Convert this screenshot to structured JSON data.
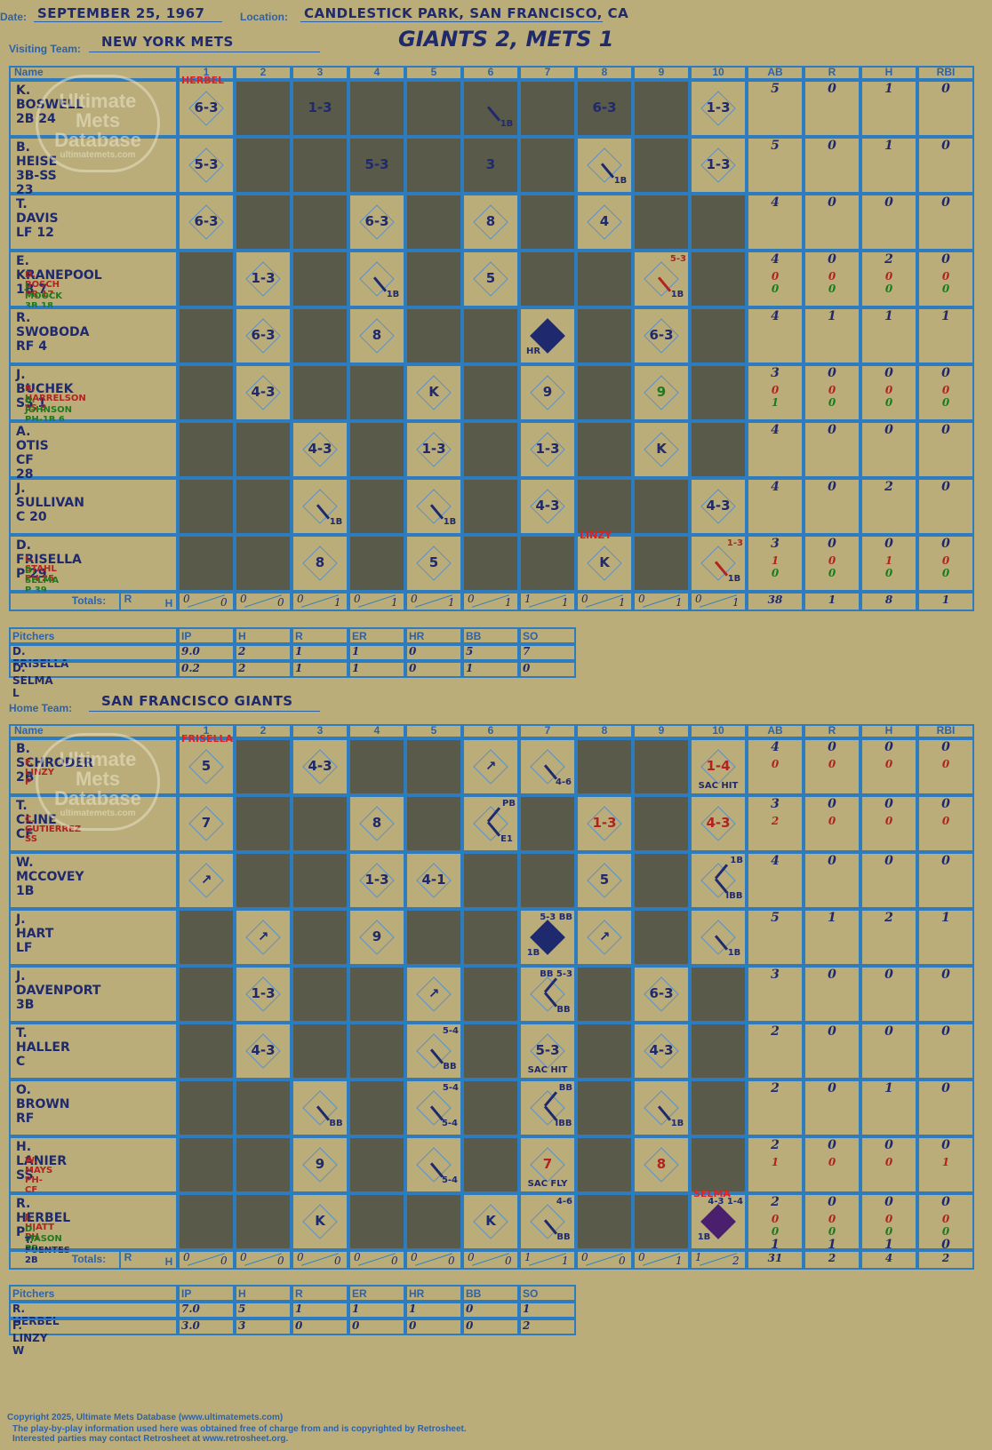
{
  "header": {
    "date_label": "Date:",
    "date": "SEPTEMBER 25, 1967",
    "location_label": "Location:",
    "location": "CANDLESTICK PARK, SAN FRANCISCO, CA",
    "visiting_label": "Visiting Team:",
    "visiting_team": "NEW YORK METS",
    "title": "GIANTS 2, METS 1",
    "home_label": "Home Team:",
    "home_team": "SAN FRANCISCO GIANTS"
  },
  "columns": {
    "name": "Name",
    "innings": [
      "1",
      "2",
      "3",
      "4",
      "5",
      "6",
      "7",
      "8",
      "9",
      "10"
    ],
    "stats": [
      "AB",
      "R",
      "H",
      "RBI"
    ],
    "totals_label": "Totals:",
    "totals_r": "R",
    "totals_h": "H"
  },
  "watermark": {
    "line1": "Ultimate",
    "line2": "Mets",
    "line3": "Database",
    "url": "ultimatemets.com"
  },
  "visitors": {
    "rows": [
      {
        "name": "K. BOSWELL 2B",
        "num": "24",
        "subs": [],
        "stats": [
          [
            "5"
          ],
          [
            "0"
          ],
          [
            "1"
          ],
          [
            "0"
          ]
        ]
      },
      {
        "name": "B. HEISE 3B-SS",
        "num": "23",
        "subs": [],
        "stats": [
          [
            "5"
          ],
          [
            "0"
          ],
          [
            "1"
          ],
          [
            "0"
          ]
        ]
      },
      {
        "name": "T. DAVIS LF",
        "num": "12",
        "subs": [],
        "stats": [
          [
            "4"
          ],
          [
            "0"
          ],
          [
            "0"
          ],
          [
            "0"
          ]
        ]
      },
      {
        "name": "E. KRANEPOOL 1B",
        "num": "7",
        "subs": [
          {
            "text": "D. BOSCH PR  17",
            "c": "red"
          },
          {
            "text": "J. MOOCK 3B  18",
            "c": "green"
          }
        ],
        "stats": [
          [
            "4",
            "0",
            "0"
          ],
          [
            "0",
            "0",
            "0"
          ],
          [
            "2",
            "0",
            "0"
          ],
          [
            "0",
            "0",
            "0"
          ]
        ]
      },
      {
        "name": "R. SWOBODA RF",
        "num": "4",
        "subs": [],
        "stats": [
          [
            "4"
          ],
          [
            "1"
          ],
          [
            "1"
          ],
          [
            "1"
          ]
        ]
      },
      {
        "name": "J. BUCHEK SS",
        "num": "1",
        "subs": [
          {
            "text": "B. HARRELSON SS  3",
            "c": "red"
          },
          {
            "text": "B. JOHNSON PH-1B  6",
            "c": "green"
          }
        ],
        "stats": [
          [
            "3",
            "0",
            "1"
          ],
          [
            "0",
            "0",
            "0"
          ],
          [
            "0",
            "0",
            "0"
          ],
          [
            "0",
            "0",
            "0"
          ]
        ]
      },
      {
        "name": "A. OTIS CF",
        "num": "28",
        "subs": [],
        "stats": [
          [
            "4"
          ],
          [
            "0"
          ],
          [
            "0"
          ],
          [
            "0"
          ]
        ]
      },
      {
        "name": "J. SULLIVAN C",
        "num": "20",
        "subs": [],
        "stats": [
          [
            "4"
          ],
          [
            "0"
          ],
          [
            "2"
          ],
          [
            "0"
          ]
        ]
      },
      {
        "name": "D. FRISELLA P",
        "num": "29",
        "subs": [
          {
            "text": "L. STAHL PH  25",
            "c": "red"
          },
          {
            "text": "D. SELMA P  39",
            "c": "green"
          }
        ],
        "stats": [
          [
            "3",
            "1",
            "0"
          ],
          [
            "0",
            "0",
            "0"
          ],
          [
            "0",
            "1",
            "0"
          ],
          [
            "0",
            "0",
            "0"
          ]
        ]
      }
    ],
    "plays": [
      {
        "r": 0,
        "c": 0,
        "t": "6-3"
      },
      {
        "r": 0,
        "c": 2,
        "t": "1-3"
      },
      {
        "r": 0,
        "c": 5,
        "t": "1B",
        "kind": "single"
      },
      {
        "r": 0,
        "c": 7,
        "t": "6-3"
      },
      {
        "r": 0,
        "c": 9,
        "t": "1-3"
      },
      {
        "r": 1,
        "c": 0,
        "t": "5-3"
      },
      {
        "r": 1,
        "c": 3,
        "t": "5-3"
      },
      {
        "r": 1,
        "c": 5,
        "t": "3"
      },
      {
        "r": 1,
        "c": 7,
        "t": "1B",
        "kind": "single"
      },
      {
        "r": 1,
        "c": 9,
        "t": "1-3"
      },
      {
        "r": 2,
        "c": 0,
        "t": "6-3"
      },
      {
        "r": 2,
        "c": 3,
        "t": "6-3"
      },
      {
        "r": 2,
        "c": 5,
        "t": "8"
      },
      {
        "r": 2,
        "c": 7,
        "t": "4"
      },
      {
        "r": 3,
        "c": 1,
        "t": "1-3"
      },
      {
        "r": 3,
        "c": 3,
        "t": "1B",
        "kind": "single"
      },
      {
        "r": 3,
        "c": 5,
        "t": "5"
      },
      {
        "r": 3,
        "c": 8,
        "t": "1B",
        "kind": "single",
        "extra": "5-3"
      },
      {
        "r": 4,
        "c": 1,
        "t": "6-3"
      },
      {
        "r": 4,
        "c": 3,
        "t": "8"
      },
      {
        "r": 4,
        "c": 6,
        "t": "HR",
        "kind": "hr"
      },
      {
        "r": 4,
        "c": 8,
        "t": "6-3"
      },
      {
        "r": 5,
        "c": 1,
        "t": "4-3"
      },
      {
        "r": 5,
        "c": 4,
        "t": "K"
      },
      {
        "r": 5,
        "c": 6,
        "t": "9"
      },
      {
        "r": 5,
        "c": 8,
        "t": "9",
        "green": true
      },
      {
        "r": 6,
        "c": 2,
        "t": "4-3"
      },
      {
        "r": 6,
        "c": 4,
        "t": "1-3"
      },
      {
        "r": 6,
        "c": 6,
        "t": "1-3"
      },
      {
        "r": 6,
        "c": 8,
        "t": "K"
      },
      {
        "r": 7,
        "c": 2,
        "t": "1B",
        "kind": "single"
      },
      {
        "r": 7,
        "c": 4,
        "t": "1B",
        "kind": "single"
      },
      {
        "r": 7,
        "c": 6,
        "t": "4-3"
      },
      {
        "r": 7,
        "c": 9,
        "t": "4-3"
      },
      {
        "r": 8,
        "c": 2,
        "t": "8"
      },
      {
        "r": 8,
        "c": 4,
        "t": "5"
      },
      {
        "r": 8,
        "c": 7,
        "t": "K"
      },
      {
        "r": 8,
        "c": 9,
        "t": "1B",
        "kind": "single",
        "extra": "1-3"
      }
    ],
    "dark": [
      [
        1,
        2,
        3,
        4,
        5,
        6,
        7,
        8
      ],
      [
        1,
        2,
        3,
        4,
        5,
        6,
        8
      ],
      [
        1,
        2,
        4,
        6,
        8,
        9
      ],
      [
        0,
        2,
        4,
        6,
        7,
        9
      ],
      [
        0,
        2,
        4,
        5,
        7,
        9
      ],
      [
        0,
        2,
        3,
        5,
        7,
        9
      ],
      [
        0,
        1,
        3,
        5,
        7,
        9
      ],
      [
        0,
        1,
        3,
        5,
        7,
        8
      ],
      [
        0,
        1,
        3,
        5,
        6,
        8
      ]
    ],
    "notes": [
      {
        "r": 0,
        "c": 0,
        "t": "HERBEL"
      },
      {
        "r": 8,
        "c": 7,
        "t": "LINZY"
      }
    ],
    "totals": [
      [
        "0",
        "0"
      ],
      [
        "0",
        "0"
      ],
      [
        "0",
        "1"
      ],
      [
        "0",
        "1"
      ],
      [
        "0",
        "1"
      ],
      [
        "0",
        "1"
      ],
      [
        "1",
        "1"
      ],
      [
        "0",
        "1"
      ],
      [
        "0",
        "1"
      ],
      [
        "0",
        "1"
      ]
    ],
    "stat_totals": [
      "38",
      "1",
      "8",
      "1"
    ]
  },
  "visitor_pitchers": {
    "header": [
      "Pitchers",
      "IP",
      "H",
      "R",
      "ER",
      "HR",
      "BB",
      "SO"
    ],
    "rows": [
      [
        "D. FRISELLA",
        "9.0",
        "2",
        "1",
        "1",
        "0",
        "5",
        "7"
      ],
      [
        "D. SELMA  L",
        "0.2",
        "2",
        "1",
        "1",
        "0",
        "1",
        "0"
      ]
    ]
  },
  "home": {
    "rows": [
      {
        "name": "B. SCHRODER 2B",
        "num": "",
        "subs": [
          {
            "text": "F. LINZY P",
            "c": "red"
          }
        ],
        "stats": [
          [
            "4",
            "0"
          ],
          [
            "0",
            "0"
          ],
          [
            "0",
            "0"
          ],
          [
            "0",
            "0"
          ]
        ]
      },
      {
        "name": "T. CLINE CF",
        "num": "",
        "subs": [
          {
            "text": "C. GUTIERREZ SS",
            "c": "red"
          }
        ],
        "stats": [
          [
            "3",
            "2"
          ],
          [
            "0",
            "0"
          ],
          [
            "0",
            "0"
          ],
          [
            "0",
            "0"
          ]
        ]
      },
      {
        "name": "W. MCCOVEY 1B",
        "num": "",
        "subs": [],
        "stats": [
          [
            "4"
          ],
          [
            "0"
          ],
          [
            "0"
          ],
          [
            "0"
          ]
        ]
      },
      {
        "name": "J. HART LF",
        "num": "",
        "subs": [],
        "stats": [
          [
            "5"
          ],
          [
            "1"
          ],
          [
            "2"
          ],
          [
            "1"
          ]
        ]
      },
      {
        "name": "J. DAVENPORT 3B",
        "num": "",
        "subs": [],
        "stats": [
          [
            "3"
          ],
          [
            "0"
          ],
          [
            "0"
          ],
          [
            "0"
          ]
        ]
      },
      {
        "name": "T. HALLER C",
        "num": "",
        "subs": [],
        "stats": [
          [
            "2"
          ],
          [
            "0"
          ],
          [
            "0"
          ],
          [
            "0"
          ]
        ]
      },
      {
        "name": "O. BROWN RF",
        "num": "",
        "subs": [],
        "stats": [
          [
            "2"
          ],
          [
            "0"
          ],
          [
            "1"
          ],
          [
            "0"
          ]
        ]
      },
      {
        "name": "H. LANIER SS",
        "num": "",
        "subs": [
          {
            "text": "W. MAYS PH-CF",
            "c": "red"
          }
        ],
        "stats": [
          [
            "2",
            "1"
          ],
          [
            "0",
            "0"
          ],
          [
            "0",
            "0"
          ],
          [
            "0",
            "1"
          ]
        ]
      },
      {
        "name": "R. HERBEL P",
        "num": "",
        "subs": [
          {
            "text": "J. HIATT PH",
            "c": "red"
          },
          {
            "text": "D. MASON PR",
            "c": "green"
          },
          {
            "text": "T. FUENTES 2B",
            "c": "blue"
          }
        ],
        "stats": [
          [
            "2",
            "0",
            "0",
            "1"
          ],
          [
            "0",
            "0",
            "0",
            "1"
          ],
          [
            "0",
            "0",
            "0",
            "1"
          ],
          [
            "0",
            "0",
            "0",
            "0"
          ]
        ]
      }
    ],
    "plays": [
      {
        "r": 0,
        "c": 0,
        "t": "5"
      },
      {
        "r": 0,
        "c": 2,
        "t": "4-3"
      },
      {
        "r": 0,
        "c": 5,
        "t": "↗"
      },
      {
        "r": 0,
        "c": 6,
        "t": "4-6",
        "kind": "single"
      },
      {
        "r": 0,
        "c": 9,
        "t": "1-4",
        "red": true,
        "extra": "SAC HIT"
      },
      {
        "r": 1,
        "c": 0,
        "t": "7"
      },
      {
        "r": 1,
        "c": 3,
        "t": "8"
      },
      {
        "r": 1,
        "c": 5,
        "t": "E1",
        "kind": "double",
        "extra": "PB"
      },
      {
        "r": 1,
        "c": 7,
        "t": "1-3",
        "red": true
      },
      {
        "r": 1,
        "c": 9,
        "t": "4-3",
        "red": true
      },
      {
        "r": 2,
        "c": 0,
        "t": "↗"
      },
      {
        "r": 2,
        "c": 3,
        "t": "1-3"
      },
      {
        "r": 2,
        "c": 4,
        "t": "4-1"
      },
      {
        "r": 2,
        "c": 7,
        "t": "5"
      },
      {
        "r": 2,
        "c": 9,
        "t": "IBB",
        "kind": "double",
        "extra": "1B"
      },
      {
        "r": 3,
        "c": 1,
        "t": "↗"
      },
      {
        "r": 3,
        "c": 3,
        "t": "9"
      },
      {
        "r": 3,
        "c": 6,
        "t": "1B",
        "kind": "hrrun",
        "extra": "5-3 BB"
      },
      {
        "r": 3,
        "c": 7,
        "t": "↗"
      },
      {
        "r": 3,
        "c": 9,
        "t": "1B",
        "kind": "single"
      },
      {
        "r": 4,
        "c": 1,
        "t": "1-3"
      },
      {
        "r": 4,
        "c": 4,
        "t": "↗"
      },
      {
        "r": 4,
        "c": 6,
        "t": "BB",
        "kind": "double",
        "extra": "BB 5-3"
      },
      {
        "r": 4,
        "c": 8,
        "t": "6-3"
      },
      {
        "r": 5,
        "c": 1,
        "t": "4-3"
      },
      {
        "r": 5,
        "c": 4,
        "t": "BB",
        "kind": "single",
        "extra": "5-4"
      },
      {
        "r": 5,
        "c": 6,
        "t": "5-3",
        "extra": "SAC HIT"
      },
      {
        "r": 5,
        "c": 8,
        "t": "4-3"
      },
      {
        "r": 6,
        "c": 2,
        "t": "BB",
        "kind": "single"
      },
      {
        "r": 6,
        "c": 4,
        "t": "5-4",
        "kind": "single",
        "extra": "5-4"
      },
      {
        "r": 6,
        "c": 6,
        "t": "IBB",
        "kind": "double",
        "extra": "BB"
      },
      {
        "r": 6,
        "c": 8,
        "t": "1B",
        "kind": "single"
      },
      {
        "r": 7,
        "c": 2,
        "t": "9"
      },
      {
        "r": 7,
        "c": 4,
        "t": "5-4",
        "kind": "single"
      },
      {
        "r": 7,
        "c": 6,
        "t": "7",
        "red": true,
        "extra": "SAC FLY"
      },
      {
        "r": 7,
        "c": 8,
        "t": "8",
        "red": true
      },
      {
        "r": 8,
        "c": 2,
        "t": "K"
      },
      {
        "r": 8,
        "c": 5,
        "t": "K"
      },
      {
        "r": 8,
        "c": 6,
        "t": "BB",
        "kind": "single",
        "extra": "4-6"
      },
      {
        "r": 8,
        "c": 9,
        "t": "1B",
        "kind": "purple",
        "extra": "4-3 1-4"
      }
    ],
    "dark": [
      [
        1,
        3,
        4,
        7,
        8
      ],
      [
        1,
        2,
        4,
        6,
        8
      ],
      [
        1,
        2,
        5,
        6,
        8
      ],
      [
        0,
        2,
        4,
        5,
        8
      ],
      [
        0,
        2,
        3,
        5,
        7,
        9
      ],
      [
        0,
        2,
        3,
        5,
        7,
        9
      ],
      [
        0,
        1,
        3,
        5,
        7,
        9
      ],
      [
        0,
        1,
        3,
        5,
        7,
        9
      ],
      [
        0,
        1,
        3,
        4,
        7,
        8
      ]
    ],
    "notes": [
      {
        "r": 0,
        "c": 0,
        "t": "FRISELLA"
      },
      {
        "r": 8,
        "c": 9,
        "t": "SELMA"
      }
    ],
    "totals": [
      [
        "0",
        "0"
      ],
      [
        "0",
        "0"
      ],
      [
        "0",
        "0"
      ],
      [
        "0",
        "0"
      ],
      [
        "0",
        "0"
      ],
      [
        "0",
        "0"
      ],
      [
        "1",
        "1"
      ],
      [
        "0",
        "0"
      ],
      [
        "0",
        "1"
      ],
      [
        "1",
        "2"
      ]
    ],
    "stat_totals": [
      "31",
      "2",
      "4",
      "2"
    ]
  },
  "home_pitchers": {
    "header": [
      "Pitchers",
      "IP",
      "H",
      "R",
      "ER",
      "HR",
      "BB",
      "SO"
    ],
    "rows": [
      [
        "R. HERBEL",
        "7.0",
        "5",
        "1",
        "1",
        "1",
        "0",
        "1"
      ],
      [
        "F. LINZY  W",
        "3.0",
        "3",
        "0",
        "0",
        "0",
        "0",
        "2"
      ]
    ]
  },
  "footer": {
    "copyright": "Copyright 2025, Ultimate Mets Database (www.ultimatemets.com)",
    "line2": "The play-by-play information used here was obtained free of charge from and is copyrighted by Retrosheet.",
    "line3": "Interested parties may contact Retrosheet at www.retrosheet.org."
  }
}
